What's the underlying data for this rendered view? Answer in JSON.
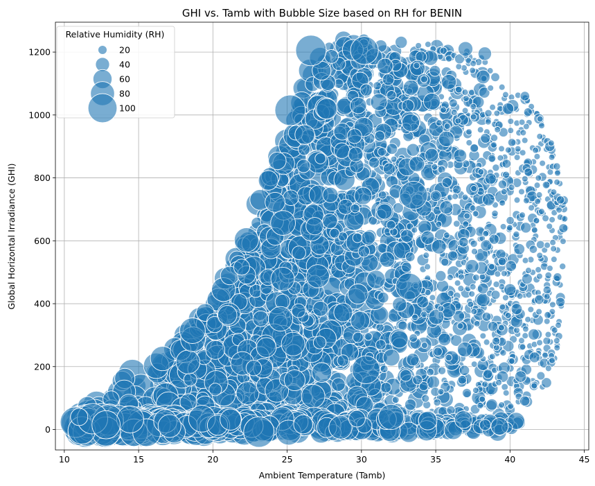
{
  "chart_data": {
    "type": "scatter",
    "title": "GHI vs. Tamb with Bubble Size based on RH for BENIN",
    "xlabel": "Ambient Temperature (Tamb)",
    "ylabel": "Global Horizontal Irradiance (GHI)",
    "xlim": [
      9.4,
      45.3
    ],
    "ylim": [
      -65,
      1295
    ],
    "xticks": [
      10,
      15,
      20,
      25,
      30,
      35,
      40,
      45
    ],
    "yticks": [
      0,
      200,
      400,
      600,
      800,
      1000,
      1200
    ],
    "grid": true,
    "marker_color": "#1f77b4",
    "marker_edge_color": "#ffffff",
    "marker_alpha": 0.6,
    "legend": {
      "title": "Relative Humidity (RH)",
      "placement": "top-left",
      "entries": [
        {
          "label": "20",
          "rh": 20
        },
        {
          "label": "40",
          "rh": 40
        },
        {
          "label": "60",
          "rh": 60
        },
        {
          "label": "80",
          "rh": 80
        },
        {
          "label": "100",
          "rh": 100
        }
      ]
    },
    "cloud_outline": [
      [
        10.6,
        0
      ],
      [
        10.8,
        50
      ],
      [
        12,
        90
      ],
      [
        14,
        160
      ],
      [
        16,
        230
      ],
      [
        18,
        300
      ],
      [
        20,
        400
      ],
      [
        21.5,
        560
      ],
      [
        22.5,
        680
      ],
      [
        23.5,
        790
      ],
      [
        24.5,
        880
      ],
      [
        25,
        940
      ],
      [
        25.8,
        1050
      ],
      [
        26.5,
        1160
      ],
      [
        27.5,
        1210
      ],
      [
        28.5,
        1240
      ],
      [
        30,
        1245
      ],
      [
        32,
        1240
      ],
      [
        34,
        1230
      ],
      [
        36,
        1210
      ],
      [
        37.5,
        1210
      ],
      [
        38.5,
        1160
      ],
      [
        40,
        1070
      ],
      [
        41.5,
        1060
      ],
      [
        42.5,
        960
      ],
      [
        43.5,
        780
      ],
      [
        43.8,
        650
      ],
      [
        43.5,
        400
      ],
      [
        43.2,
        250
      ],
      [
        42.5,
        150
      ],
      [
        41,
        80
      ],
      [
        39.5,
        20
      ],
      [
        38,
        0
      ],
      [
        34,
        -10
      ],
      [
        20,
        -10
      ],
      [
        12,
        -10
      ]
    ],
    "sample_points": [
      {
        "x": 23.1,
        "y": -8,
        "rh": 100
      },
      {
        "x": 25.2,
        "y": 1015,
        "rh": 100
      },
      {
        "x": 26.6,
        "y": 1205,
        "rh": 100
      },
      {
        "x": 30.2,
        "y": 1205,
        "rh": 90
      },
      {
        "x": 33.5,
        "y": 745,
        "rh": 90
      },
      {
        "x": 33.2,
        "y": 455,
        "rh": 85
      },
      {
        "x": 30.3,
        "y": 190,
        "rh": 90
      },
      {
        "x": 32.0,
        "y": 40,
        "rh": 80
      },
      {
        "x": 37.0,
        "y": 1210,
        "rh": 40
      },
      {
        "x": 38.3,
        "y": 1195,
        "rh": 35
      },
      {
        "x": 41.0,
        "y": 1060,
        "rh": 20
      },
      {
        "x": 43.4,
        "y": 730,
        "rh": 15
      },
      {
        "x": 11.0,
        "y": 40,
        "rh": 50
      },
      {
        "x": 39.3,
        "y": 10,
        "rh": 50
      }
    ]
  }
}
